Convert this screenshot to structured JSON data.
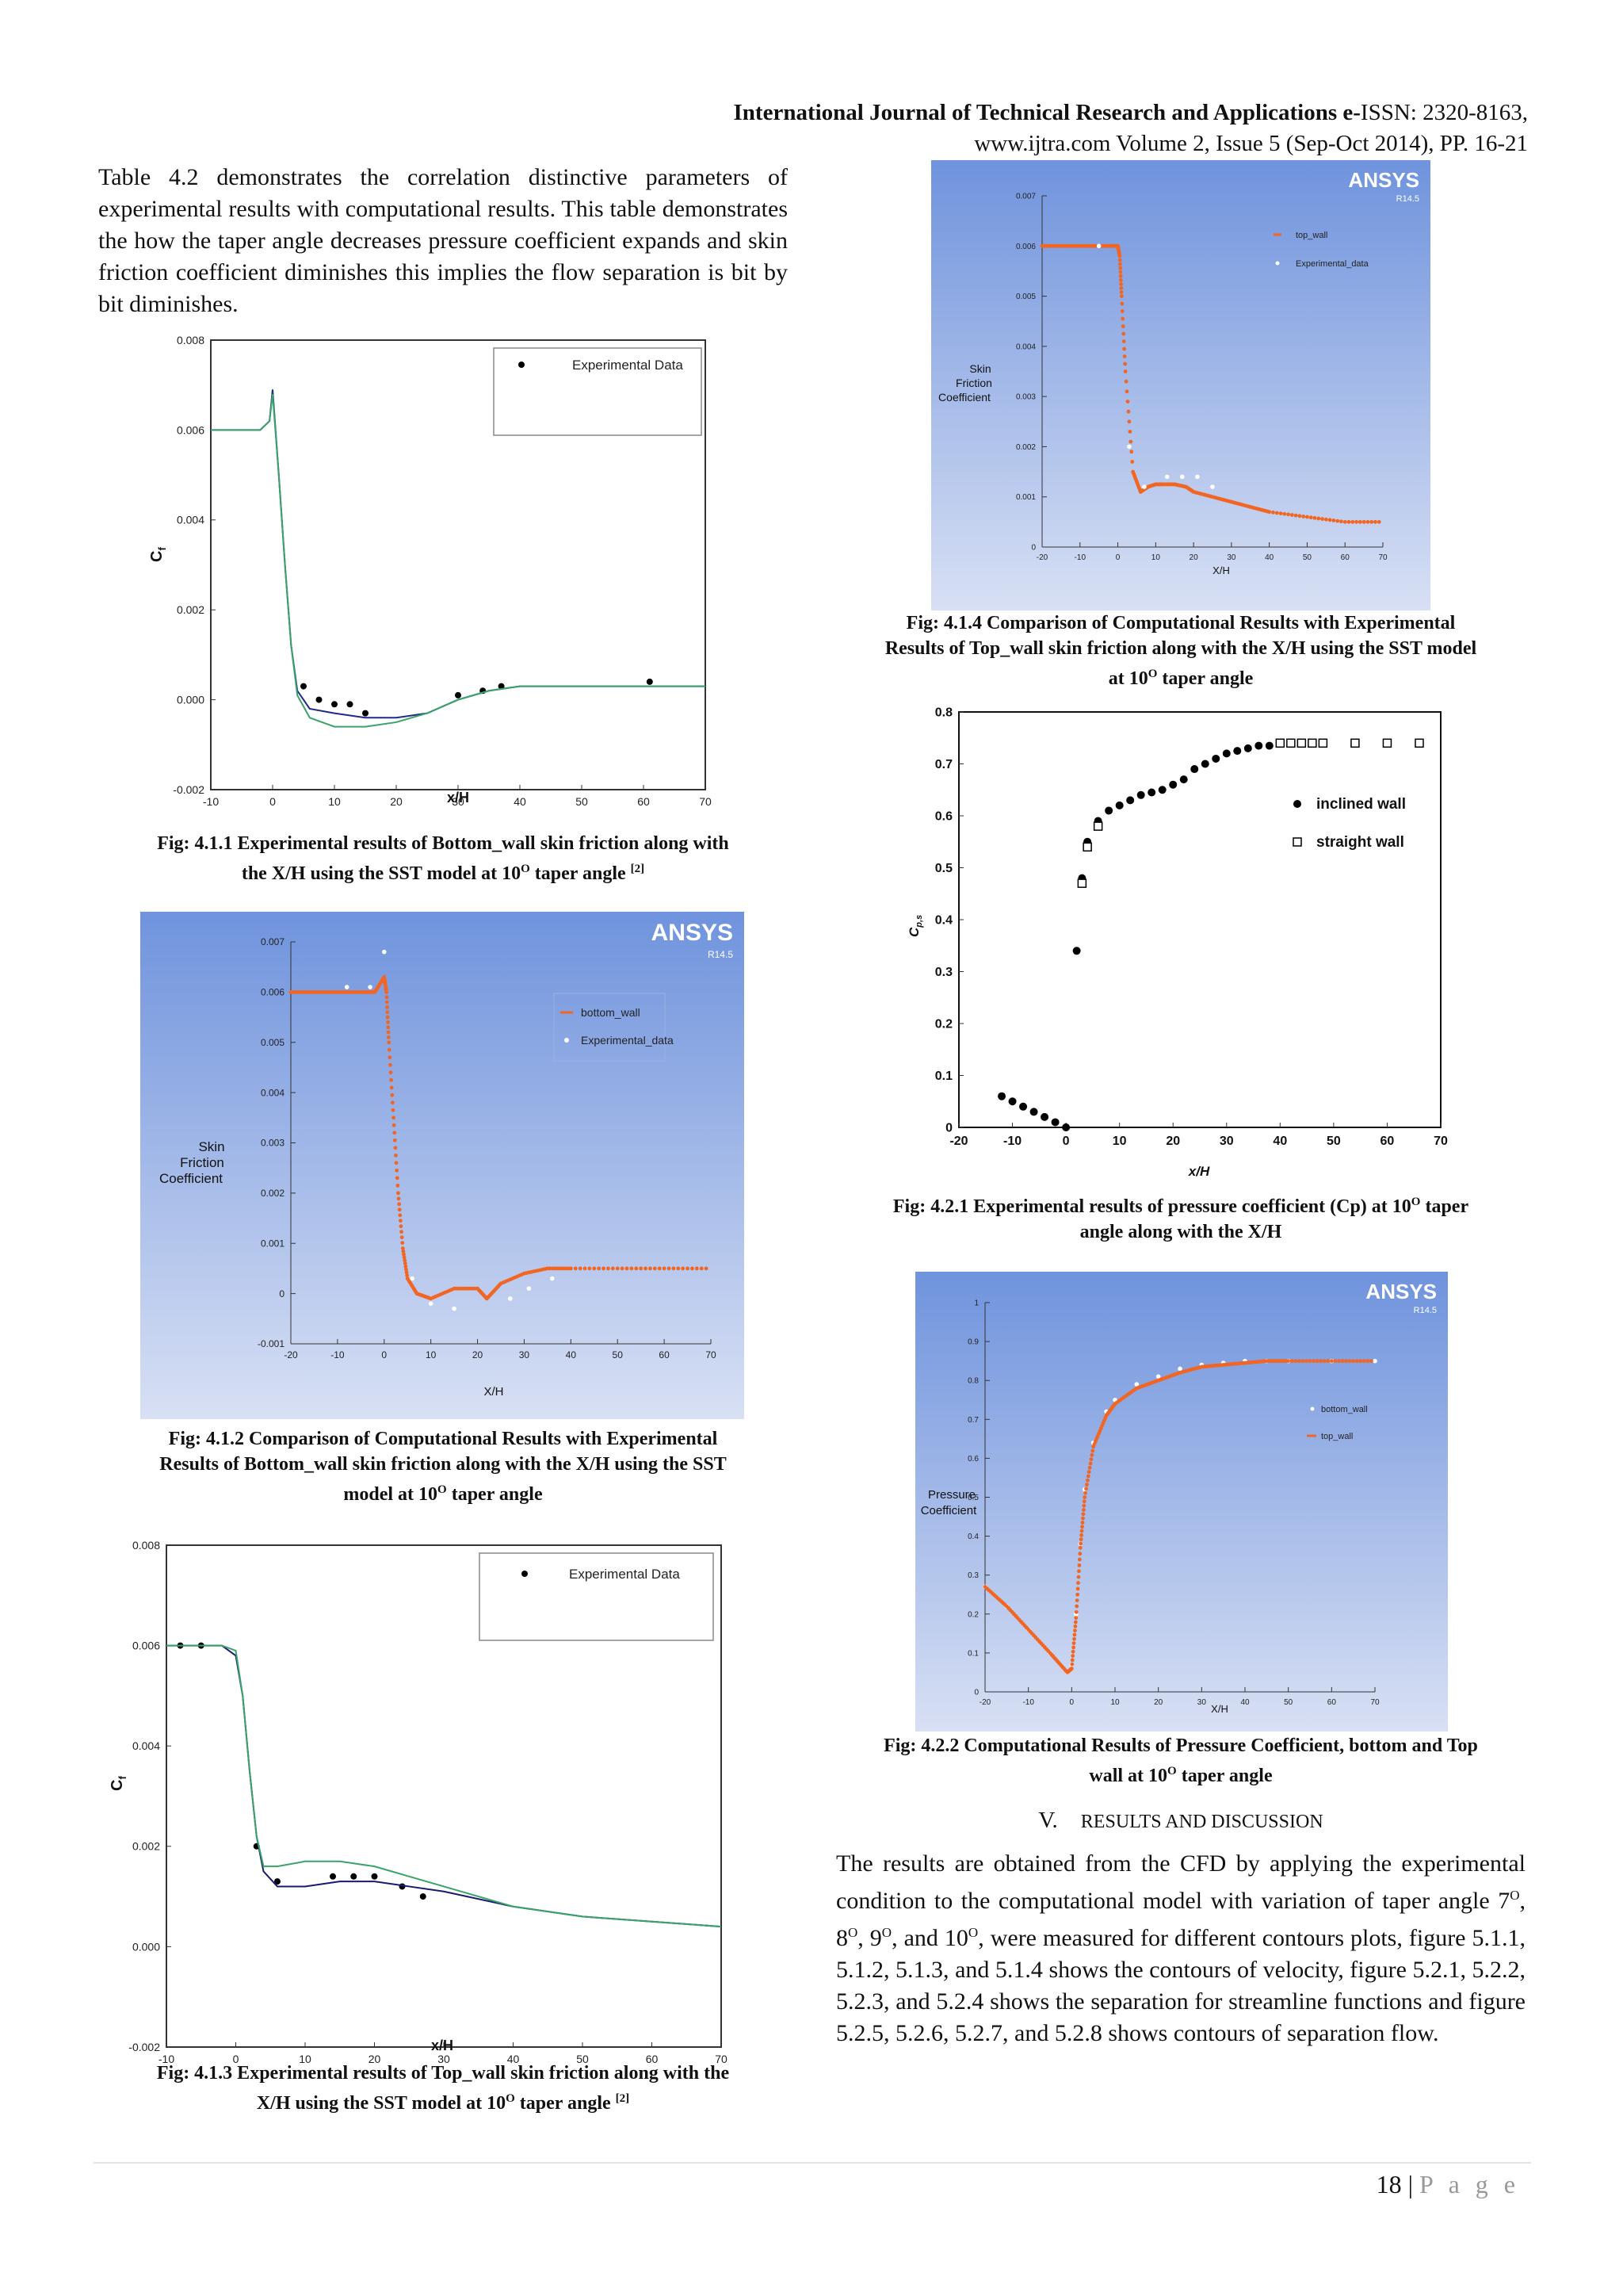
{
  "header": {
    "journal": "International Journal of Technical Research and Applications",
    "issn_prefix": "e-",
    "issn": "ISSN: 2320-8163,",
    "line2": "www.ijtra.com Volume 2, Issue 5 (Sep-Oct 2014), PP. 16-21"
  },
  "intro_paragraph": "Table 4.2 demonstrates the correlation distinctive parameters of experimental results with computational results. This table demonstrates the how the taper angle decreases pressure coefficient expands and skin friction coefficient diminishes this implies the flow separation is bit by bit diminishes.",
  "colors": {
    "ansys_bg_top": "#6f93dd",
    "ansys_bg_bottom": "#d8e0f4",
    "orange_series": "#f26522",
    "exp_dark_blue": "#1f2a8a",
    "exp_green": "#3aa36a",
    "exp_navy": "#191970"
  },
  "figures": {
    "f411": {
      "caption_lines": [
        "Fig: 4.1.1 Experimental results of Bottom_wall skin friction along with",
        "the X/H using the SST model at 10"
      ],
      "caption_sup": "O",
      "caption_tail": " taper angle ",
      "caption_ref": "[2]",
      "legend": "Experimental Data",
      "ylabel_main": "C",
      "ylabel_sub": "f",
      "xlabel": "x/H",
      "yticks": [
        "0.008",
        "0.006",
        "0.004",
        "0.002",
        "0.000",
        "-0.002"
      ],
      "xticks": [
        "-10",
        "0",
        "10",
        "20",
        "30",
        "40",
        "50",
        "60",
        "70"
      ]
    },
    "f412": {
      "caption_lines": [
        "Fig: 4.1.2 Comparison of Computational Results with Experimental",
        "Results of Bottom_wall skin friction along with the X/H using the SST",
        "model at 10"
      ],
      "caption_sup": "O",
      "caption_tail": " taper angle",
      "logo": "ANSYS",
      "version": "R14.5",
      "legend": [
        "bottom_wall",
        "Experimental_data"
      ],
      "ylabel": [
        "Skin",
        "Friction",
        "Coefficient"
      ],
      "xlabel": "X/H",
      "yticks": [
        "0.007",
        "0.006",
        "0.005",
        "0.004",
        "0.003",
        "0.002",
        "0.001",
        "0",
        "-0.001"
      ],
      "xticks": [
        "-20",
        "-10",
        "0",
        "10",
        "20",
        "30",
        "40",
        "50",
        "60",
        "70"
      ]
    },
    "f413": {
      "caption_lines": [
        "Fig: 4.1.3 Experimental results of Top_wall skin friction along with the",
        "X/H using the SST model at 10"
      ],
      "caption_sup": "O",
      "caption_tail": " taper angle ",
      "caption_ref": "[2]",
      "legend": "Experimental Data",
      "ylabel_main": "C",
      "ylabel_sub": "f",
      "xlabel": "x/H",
      "yticks": [
        "0.008",
        "0.006",
        "0.004",
        "0.002",
        "0.000",
        "-0.002"
      ],
      "xticks": [
        "-10",
        "0",
        "10",
        "20",
        "30",
        "40",
        "50",
        "60",
        "70"
      ]
    },
    "f414": {
      "caption_lines": [
        "Fig: 4.1.4 Comparison of Computational Results with Experimental",
        "Results of Top_wall skin friction along with the X/H using the SST model",
        "at 10"
      ],
      "caption_sup": "O",
      "caption_tail": " taper angle",
      "logo": "ANSYS",
      "version": "R14.5",
      "legend": [
        "top_wall",
        "Experimental_data"
      ],
      "ylabel": [
        "Skin",
        "Friction",
        "Coefficient"
      ],
      "xlabel": "X/H",
      "yticks": [
        "0.007",
        "0.006",
        "0.005",
        "0.004",
        "0.003",
        "0.002",
        "0.001",
        "0"
      ],
      "xticks": [
        "-20",
        "-10",
        "0",
        "10",
        "20",
        "30",
        "40",
        "50",
        "60",
        "70"
      ]
    },
    "f421": {
      "caption_lines": [
        "Fig: 4.2.1 Experimental results of pressure coefficient (Cp) at 10"
      ],
      "caption_sup": "O",
      "caption_tail": " taper",
      "caption_line2": "angle along with the X/H",
      "legend": [
        "inclined wall",
        "straight wall"
      ],
      "ylabel_main": "C",
      "ylabel_sub": "p,s",
      "xlabel": "x/H",
      "yticks": [
        "0.8",
        "0.7",
        "0.6",
        "0.5",
        "0.4",
        "0.3",
        "0.2",
        "0.1",
        "0"
      ],
      "xticks": [
        "-20",
        "-10",
        "0",
        "10",
        "20",
        "30",
        "40",
        "50",
        "60",
        "70"
      ]
    },
    "f422": {
      "caption_lines": [
        "Fig: 4.2.2 Computational Results of Pressure Coefficient, bottom and Top",
        "wall at 10"
      ],
      "caption_sup": "O",
      "caption_tail": " taper angle",
      "logo": "ANSYS",
      "version": "R14.5",
      "legend": [
        "bottom_wall",
        "top_wall"
      ],
      "ylabel": [
        "Pressure",
        "Coefficient"
      ],
      "xlabel": "X/H",
      "yticks": [
        "1",
        "0.9",
        "0.8",
        "0.7",
        "0.6",
        "0.5",
        "0.4",
        "0.3",
        "0.2",
        "0.1",
        "0"
      ],
      "xticks": [
        "-20",
        "-10",
        "0",
        "10",
        "20",
        "30",
        "40",
        "50",
        "60",
        "70"
      ]
    }
  },
  "section": {
    "number": "V.",
    "title": "RESULTS AND DISCUSSION",
    "body": "The results are obtained from the CFD by applying the experimental condition to the computational model with variation of taper angle 7",
    "sup": "O",
    "body_parts": [
      ", 8",
      ", 9",
      ", and 10",
      ", were measured for different contours plots, figure 5.1.1, 5.1.2, 5.1.3, and 5.1.4 shows the contours of velocity, figure 5.2.1, 5.2.2, 5.2.3, and 5.2.4 shows the separation for streamline functions and figure 5.2.5, 5.2.6, 5.2.7, and 5.2.8 shows contours of separation flow."
    ]
  },
  "footer": {
    "page_number": "18 | ",
    "page_word": "P a g e"
  },
  "chart_data": [
    {
      "id": "f411",
      "type": "line",
      "title": "",
      "xlabel": "x/H",
      "ylabel": "Cf",
      "xlim": [
        -10,
        70
      ],
      "ylim": [
        -0.002,
        0.008
      ],
      "series": [
        {
          "name": "Experimental Data",
          "kind": "points",
          "x": [
            5,
            7.5,
            10,
            12.5,
            15,
            30,
            34,
            37,
            61
          ],
          "y": [
            0.0003,
            0.0,
            -0.0001,
            -0.0001,
            -0.0003,
            0.0001,
            0.0002,
            0.0003,
            0.0004
          ]
        },
        {
          "kind": "line",
          "color": "#1f2a8a",
          "x": [
            -10,
            -2,
            -0.5,
            0,
            1,
            2,
            3,
            4,
            6,
            10,
            15,
            20,
            25,
            30,
            35,
            40,
            50,
            60,
            70
          ],
          "y": [
            0.006,
            0.006,
            0.0062,
            0.0069,
            0.005,
            0.003,
            0.0012,
            0.0002,
            -0.0002,
            -0.0003,
            -0.0004,
            -0.0004,
            -0.0003,
            0.0,
            0.0002,
            0.0003,
            0.0003,
            0.0003,
            0.0003
          ]
        },
        {
          "kind": "line",
          "color": "#3aa36a",
          "x": [
            -10,
            -2,
            -0.5,
            0,
            1,
            2,
            3,
            4,
            6,
            10,
            15,
            20,
            25,
            30,
            35,
            40,
            50,
            60,
            70
          ],
          "y": [
            0.006,
            0.006,
            0.0062,
            0.0068,
            0.005,
            0.003,
            0.0012,
            0.0001,
            -0.0004,
            -0.0006,
            -0.0006,
            -0.0005,
            -0.0003,
            0.0,
            0.0002,
            0.0003,
            0.0003,
            0.0003,
            0.0003
          ]
        }
      ]
    },
    {
      "id": "f412",
      "type": "scatter",
      "title": "",
      "xlabel": "X/H",
      "ylabel": "Skin Friction Coefficient",
      "xlim": [
        -20,
        70
      ],
      "ylim": [
        -0.001,
        0.007
      ],
      "series": [
        {
          "name": "bottom_wall",
          "x": [
            -20,
            -15,
            -10,
            -5,
            -2,
            0,
            0.5,
            1,
            2,
            3,
            4,
            5,
            7,
            10,
            15,
            20,
            22,
            25,
            30,
            35,
            40,
            50,
            60,
            70
          ],
          "y": [
            0.006,
            0.006,
            0.006,
            0.006,
            0.006,
            0.0063,
            0.006,
            0.005,
            0.0035,
            0.002,
            0.0009,
            0.0003,
            0.0,
            -0.0001,
            0.0001,
            0.0001,
            -0.0001,
            0.0002,
            0.0004,
            0.0005,
            0.0005,
            0.0005,
            0.0005,
            0.0005
          ]
        },
        {
          "name": "Experimental_data",
          "x": [
            -8,
            -3,
            0,
            6,
            10,
            15,
            27,
            31,
            36
          ],
          "y": [
            0.0061,
            0.0061,
            0.0068,
            0.0003,
            -0.0002,
            -0.0003,
            -0.0001,
            0.0001,
            0.0003
          ]
        }
      ]
    },
    {
      "id": "f413",
      "type": "line",
      "title": "",
      "xlabel": "x/H",
      "ylabel": "Cf",
      "xlim": [
        -10,
        70
      ],
      "ylim": [
        -0.002,
        0.008
      ],
      "series": [
        {
          "name": "Experimental Data",
          "kind": "points",
          "x": [
            -8,
            -5,
            3,
            6,
            14,
            17,
            20,
            24,
            27
          ],
          "y": [
            0.006,
            0.006,
            0.002,
            0.0013,
            0.0014,
            0.0014,
            0.0014,
            0.0012,
            0.001
          ]
        },
        {
          "kind": "line",
          "color": "#191970",
          "x": [
            -10,
            -2,
            0,
            1,
            2,
            3,
            4,
            6,
            10,
            15,
            20,
            25,
            30,
            40,
            50,
            60,
            70
          ],
          "y": [
            0.006,
            0.006,
            0.0058,
            0.005,
            0.0035,
            0.0022,
            0.0015,
            0.0012,
            0.0012,
            0.0013,
            0.0013,
            0.0012,
            0.0011,
            0.0008,
            0.0006,
            0.0005,
            0.0004
          ]
        },
        {
          "kind": "line",
          "color": "#3aa36a",
          "x": [
            -10,
            -2,
            0,
            1,
            2,
            3,
            4,
            6,
            10,
            15,
            20,
            25,
            30,
            40,
            50,
            60,
            70
          ],
          "y": [
            0.006,
            0.006,
            0.0059,
            0.005,
            0.0035,
            0.0022,
            0.0016,
            0.0016,
            0.0017,
            0.0017,
            0.0016,
            0.0014,
            0.0012,
            0.0008,
            0.0006,
            0.0005,
            0.0004
          ]
        }
      ]
    },
    {
      "id": "f414",
      "type": "scatter",
      "title": "",
      "xlabel": "X/H",
      "ylabel": "Skin Friction Coefficient",
      "xlim": [
        -20,
        70
      ],
      "ylim": [
        0,
        0.007
      ],
      "series": [
        {
          "name": "top_wall",
          "x": [
            -20,
            -15,
            -10,
            -5,
            -2,
            0,
            0.5,
            1,
            2,
            4,
            6,
            8,
            10,
            12,
            15,
            18,
            20,
            25,
            30,
            35,
            40,
            50,
            60,
            70
          ],
          "y": [
            0.006,
            0.006,
            0.006,
            0.006,
            0.006,
            0.006,
            0.0058,
            0.005,
            0.0035,
            0.0015,
            0.0011,
            0.0012,
            0.00125,
            0.00125,
            0.00125,
            0.0012,
            0.0011,
            0.001,
            0.0009,
            0.0008,
            0.0007,
            0.0006,
            0.0005,
            0.0005
          ]
        },
        {
          "name": "Experimental_data",
          "x": [
            -5,
            3,
            7,
            13,
            17,
            21,
            25
          ],
          "y": [
            0.006,
            0.002,
            0.0012,
            0.0014,
            0.0014,
            0.0014,
            0.0012
          ]
        }
      ]
    },
    {
      "id": "f421",
      "type": "scatter",
      "title": "",
      "xlabel": "x/H",
      "ylabel": "Cp,s",
      "xlim": [
        -20,
        70
      ],
      "ylim": [
        0,
        0.8
      ],
      "series": [
        {
          "name": "inclined wall",
          "x": [
            -12,
            -10,
            -8,
            -6,
            -4,
            -2,
            0,
            2,
            3,
            4,
            6,
            8,
            10,
            12,
            14,
            16,
            18,
            20,
            22,
            24,
            26,
            28,
            30,
            32,
            34,
            36,
            38,
            40,
            42,
            44,
            46
          ],
          "y": [
            0.06,
            0.05,
            0.04,
            0.03,
            0.02,
            0.01,
            0.0,
            0.34,
            0.48,
            0.55,
            0.59,
            0.61,
            0.62,
            0.63,
            0.64,
            0.645,
            0.65,
            0.66,
            0.67,
            0.69,
            0.7,
            0.71,
            0.72,
            0.725,
            0.73,
            0.735,
            0.735,
            0.74,
            0.74,
            0.74,
            0.74
          ]
        },
        {
          "name": "straight wall",
          "x": [
            3,
            4,
            6,
            40,
            42,
            44,
            46,
            48,
            54,
            60,
            66
          ],
          "y": [
            0.47,
            0.54,
            0.58,
            0.74,
            0.74,
            0.74,
            0.74,
            0.74,
            0.74,
            0.74,
            0.74
          ]
        }
      ]
    },
    {
      "id": "f422",
      "type": "line",
      "title": "",
      "xlabel": "X/H",
      "ylabel": "Pressure Coefficient",
      "xlim": [
        -20,
        70
      ],
      "ylim": [
        0,
        1
      ],
      "series": [
        {
          "name": "bottom_wall",
          "x": [
            -20,
            -15,
            -10,
            -5,
            -1,
            0,
            1,
            2,
            3,
            5,
            8,
            10,
            15,
            20,
            25,
            30,
            35,
            40,
            45,
            50,
            60,
            70
          ],
          "y": [
            0.27,
            0.22,
            0.16,
            0.1,
            0.05,
            0.07,
            0.2,
            0.38,
            0.52,
            0.64,
            0.72,
            0.75,
            0.79,
            0.81,
            0.83,
            0.84,
            0.845,
            0.85,
            0.85,
            0.85,
            0.85,
            0.85
          ]
        },
        {
          "name": "top_wall",
          "x": [
            -20,
            -15,
            -10,
            -5,
            -1,
            0,
            1,
            2,
            3,
            5,
            8,
            10,
            15,
            20,
            25,
            30,
            35,
            40,
            45,
            50,
            60,
            70
          ],
          "y": [
            0.27,
            0.22,
            0.16,
            0.1,
            0.05,
            0.06,
            0.19,
            0.37,
            0.5,
            0.63,
            0.71,
            0.74,
            0.78,
            0.8,
            0.82,
            0.835,
            0.84,
            0.845,
            0.85,
            0.85,
            0.85,
            0.85
          ]
        }
      ]
    }
  ]
}
